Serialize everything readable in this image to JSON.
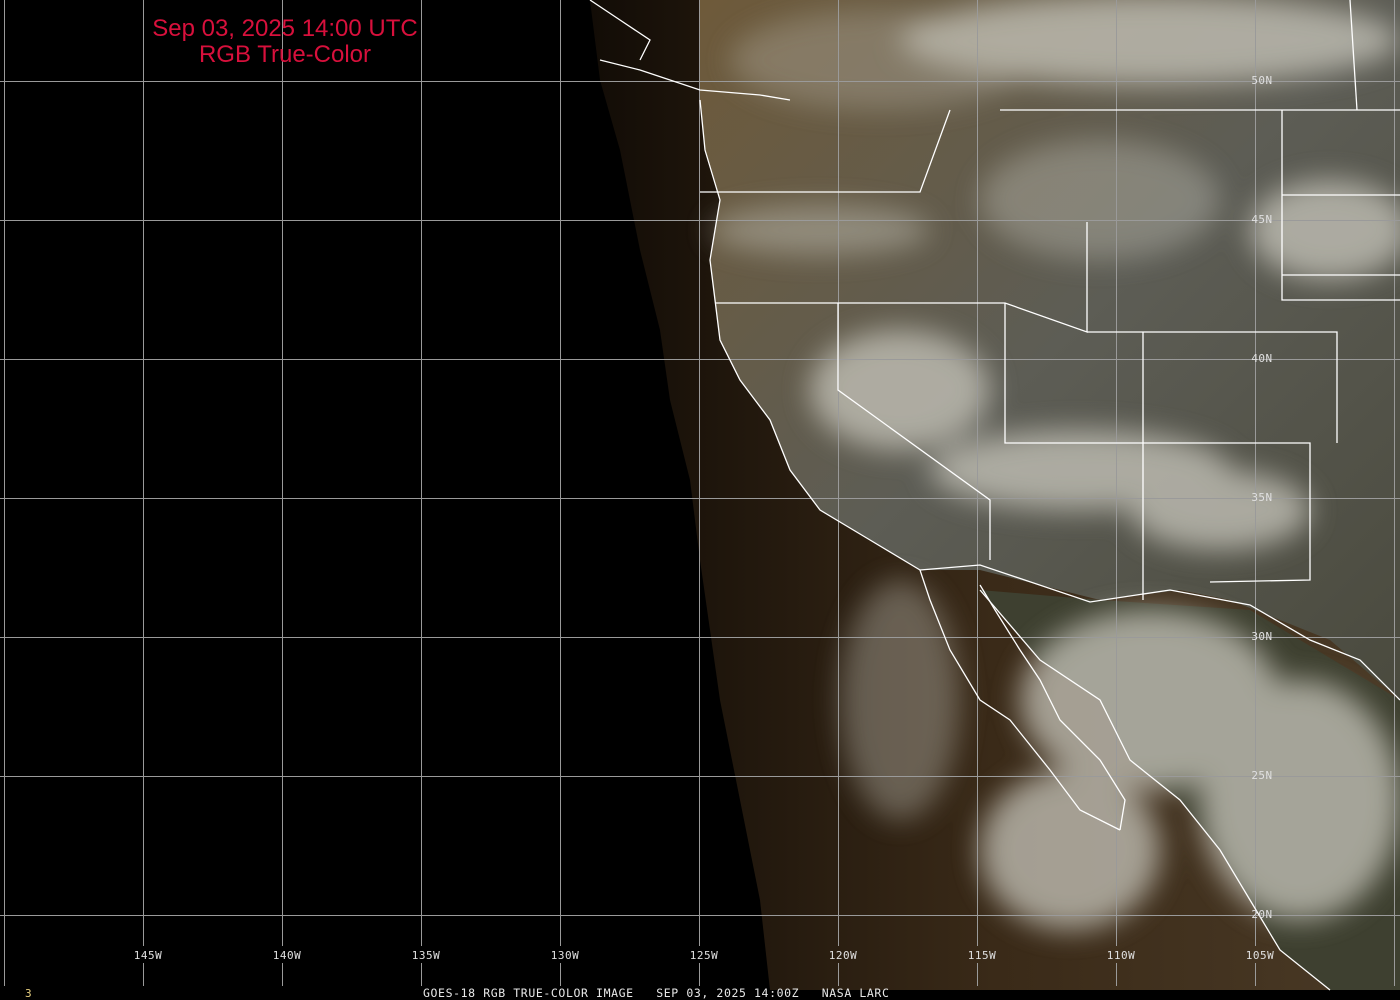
{
  "title": {
    "line1": "Sep 03, 2025 14:00 UTC",
    "line2": "RGB True-Color"
  },
  "longitude_labels": [
    "145W",
    "140W",
    "135W",
    "130W",
    "125W",
    "120W",
    "115W",
    "110W",
    "105W"
  ],
  "latitude_labels": [
    "50N",
    "45N",
    "40N",
    "35N",
    "30N",
    "25N",
    "20N"
  ],
  "footer": {
    "frame": "3",
    "caption": "GOES-18 RGB TRUE-COLOR IMAGE   SEP 03, 2025 14:00Z   NASA LARC"
  },
  "colors": {
    "title": "#d8103c",
    "grid": "#9a9a9a",
    "borders": "#ffffff",
    "background": "#000000"
  }
}
